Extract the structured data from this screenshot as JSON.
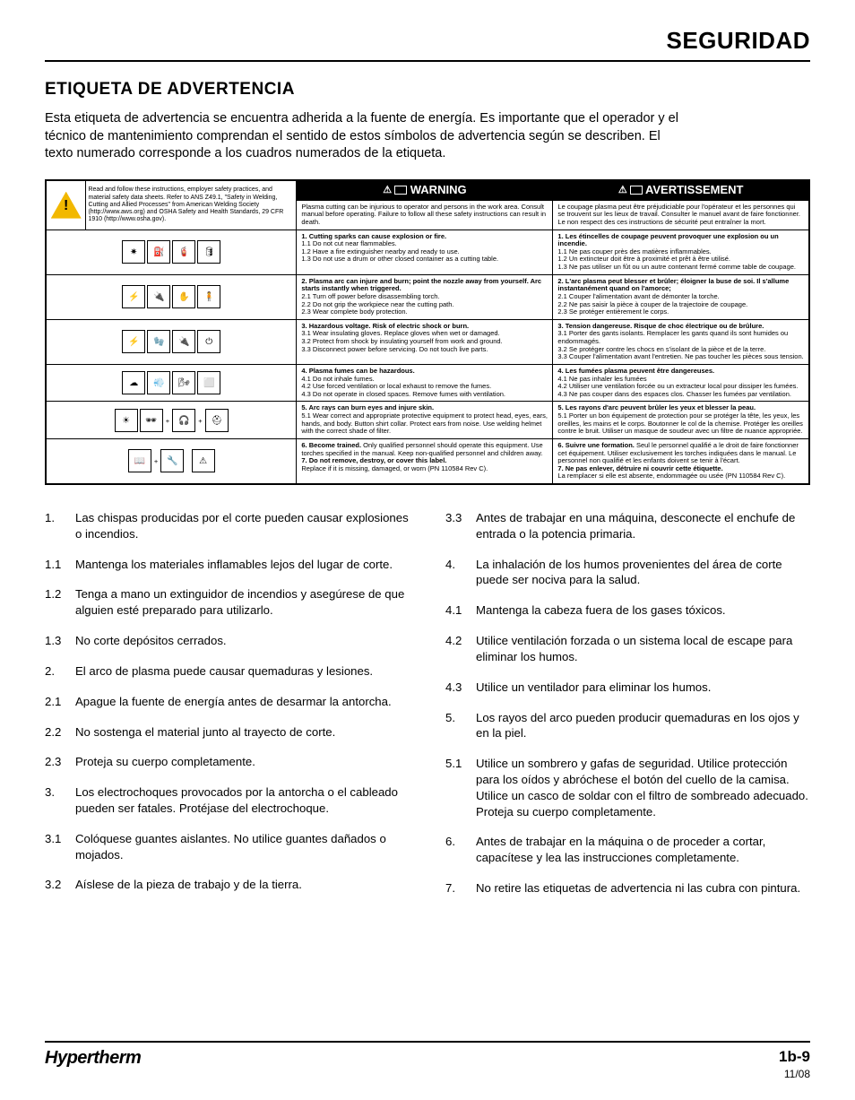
{
  "header": {
    "title": "SEGURIDAD"
  },
  "section": {
    "title": "ETIQUETA DE ADVERTENCIA",
    "intro": "Esta etiqueta de advertencia se encuentra adherida a la fuente de energía. Es importante que el operador y el técnico de mantenimiento comprendan el sentido de estos símbolos de advertencia según se describen. El texto numerado corresponde a los cuadros numerados de la etiqueta."
  },
  "table": {
    "header_mid": "WARNING",
    "header_right": "AVERTISSEMENT",
    "top_read": "Read and follow these instructions, employer safety practices, and material safety data sheets. Refer to ANS Z49.1, \"Safety in Welding, Cutting and Allied Processes\" from American Welding Society (http://www.aws.org) and OSHA Safety and Health Standards, 29 CFR 1910 (http://www.osha.gov).",
    "top_en": "Plasma cutting can be injurious to operator and  persons in the work area. Consult manual before operating. Failure to follow all these safety instructions can result in death.",
    "top_fr": "Le coupage plasma peut être préjudiciable pour l'opérateur et les personnes qui se trouvent sur les lieux de travail. Consulter le manuel avant de faire fonctionner. Le non respect des ces instructions de sécurité peut entraîner la mort.",
    "rows": [
      {
        "en_b": "1. Cutting sparks can cause explosion or fire.",
        "en_t": "1.1 Do not cut near flammables.\n1.2 Have a fire extinguisher nearby and ready to use.\n1.3 Do not use a drum or other closed container as a cutting table.",
        "fr_b": "1. Les étincelles de coupage peuvent provoquer une explosion ou un incendie.",
        "fr_t": "1.1 Ne pas couper près des matières inflammables.\n1.2 Un extincteur doit être à proximité et prêt à être utilisé.\n1.3 Ne pas utiliser un fût ou un autre contenant fermé comme table de coupage."
      },
      {
        "en_b": "2. Plasma arc can injure and burn; point the nozzle away from yourself. Arc starts instantly when triggered.",
        "en_t": "2.1 Turn off power before disassembling torch.\n2.2 Do not grip the workpiece near the cutting path.\n2.3 Wear complete body protection.",
        "fr_b": "2. L'arc plasma peut blesser et brûler; éloigner la buse de soi. Il s'allume instantanément quand on l'amorce;",
        "fr_t": "2.1 Couper l'alimentation avant de démonter la torche.\n2.2 Ne pas saisir la pièce à couper de la trajectoire de coupage.\n2.3 Se protéger entièrement le corps."
      },
      {
        "en_b": "3. Hazardous voltage. Risk of electric shock or burn.",
        "en_t": "3.1 Wear insulating gloves. Replace gloves when wet or damaged.\n3.2 Protect from shock by insulating yourself from work and ground.\n3.3 Disconnect power before servicing. Do not touch live parts.",
        "fr_b": "3. Tension dangereuse. Risque de choc électrique ou de brûlure.",
        "fr_t": "3.1 Porter des gants isolants. Remplacer les gants quand ils sont humides ou endommagés.\n3.2 Se protéger contre les chocs en s'isolant de la pièce et de la terre.\n3.3 Couper l'alimentation avant l'entretien. Ne pas toucher les pièces sous tension."
      },
      {
        "en_b": "4. Plasma fumes can be hazardous.",
        "en_t": "4.1 Do not inhale fumes.\n4.2 Use forced ventilation or local exhaust to remove the fumes.\n4.3 Do not operate in closed spaces. Remove fumes with ventilation.",
        "fr_b": "4. Les fumées plasma peuvent être dangereuses.",
        "fr_t": "4.1 Ne pas inhaler les fumées\n4.2 Utiliser une ventilation forcée ou un extracteur local pour dissiper les fumées.\n4.3 Ne pas couper dans des espaces clos. Chasser les fumées par ventilation."
      },
      {
        "en_b": "5. Arc rays can burn eyes and injure skin.",
        "en_t": "5.1 Wear correct and appropriate protective equipment to protect head, eyes, ears, hands, and body. Button shirt collar. Protect ears from noise. Use welding helmet with the correct shade of filter.",
        "fr_b": "5. Les rayons d'arc peuvent brûler les yeux et blesser la peau.",
        "fr_t": "5.1 Porter un bon équipement de protection pour se protéger la tête, les yeux, les oreilles, les mains et le corps. Boutonner le col de la chemise. Protéger les oreilles contre le bruit. Utiliser un masque de soudeur avec un filtre de nuance  appropriée."
      },
      {
        "en_b1": "6. Become trained.",
        "en_t1": " Only qualified personnel should operate this equipment. Use torches specified in the manual. Keep non-qualified personnel and children away.",
        "en_b2": "7. Do not remove, destroy, or cover this label.",
        "en_t2": "Replace if it is missing, damaged, or worn  (PN 110584 Rev C).",
        "fr_b1": "6. Suivre une formation.",
        "fr_t1": " Seul le personnel qualifié a le droit de faire fonctionner cet équipement. Utiliser exclusivement les torches indiquées dans le manual. Le personnel non qualifié et les enfants doivent se tenir à l'écart.",
        "fr_b2": "7. Ne pas enlever, détruire ni couvrir cette étiquette.",
        "fr_t2": "La remplacer si elle est absente, endommagée ou usée (PN 110584 Rev C)."
      }
    ]
  },
  "left_items": [
    {
      "n": "1.",
      "t": "Las chispas producidas por el corte pueden causar explosiones o incendios."
    },
    {
      "n": "1.1",
      "t": "Mantenga los materiales inflamables lejos del lugar de corte."
    },
    {
      "n": "1.2",
      "t": "Tenga a mano un extinguidor de incendios y asegúrese de que alguien esté preparado para utilizarlo."
    },
    {
      "n": "1.3",
      "t": "No corte depósitos cerrados."
    },
    {
      "n": "2.",
      "t": "El arco de plasma puede causar quemaduras y lesiones."
    },
    {
      "n": "2.1",
      "t": "Apague la fuente de energía antes de desarmar la antorcha."
    },
    {
      "n": "2.2",
      "t": "No sostenga el material junto al trayecto de corte."
    },
    {
      "n": "2.3",
      "t": "Proteja su cuerpo completamente."
    },
    {
      "n": "3.",
      "t": "Los electrochoques provocados por la antorcha o el cableado pueden ser fatales. Protéjase del electrochoque."
    },
    {
      "n": "3.1",
      "t": "Colóquese guantes aislantes. No utilice guantes dañados o mojados."
    },
    {
      "n": "3.2",
      "t": "Aíslese de la pieza de trabajo y de la tierra."
    }
  ],
  "right_items": [
    {
      "n": "3.3",
      "t": "Antes de trabajar en una máquina, desconecte el enchufe de entrada o la potencia primaria."
    },
    {
      "n": "4.",
      "t": "La inhalación de los humos provenientes del área de corte puede ser nociva para la salud."
    },
    {
      "n": "4.1",
      "t": "Mantenga la cabeza fuera de los gases tóxicos."
    },
    {
      "n": "4.2",
      "t": "Utilice ventilación forzada o un sistema local de escape para eliminar los humos."
    },
    {
      "n": "4.3",
      "t": "Utilice un ventilador para eliminar los humos."
    },
    {
      "n": "5.",
      "t": "Los rayos del arco pueden producir quemaduras en los ojos y en la piel."
    },
    {
      "n": "5.1",
      "t": "Utilice un sombrero y gafas de seguridad. Utilice protección para los oídos y abróchese el botón del cuello de la camisa. Utilice un casco de soldar con el filtro de sombreado adecuado. Proteja su cuerpo completamente."
    },
    {
      "n": "6.",
      "t": "Antes de trabajar en la máquina o de proceder a cortar, capacítese y lea las instrucciones completamente."
    },
    {
      "n": "7.",
      "t": "No retire las etiquetas de advertencia ni las cubra con pintura."
    }
  ],
  "footer": {
    "brand": "Hypertherm",
    "page": "1b-9",
    "date": "11/08"
  }
}
